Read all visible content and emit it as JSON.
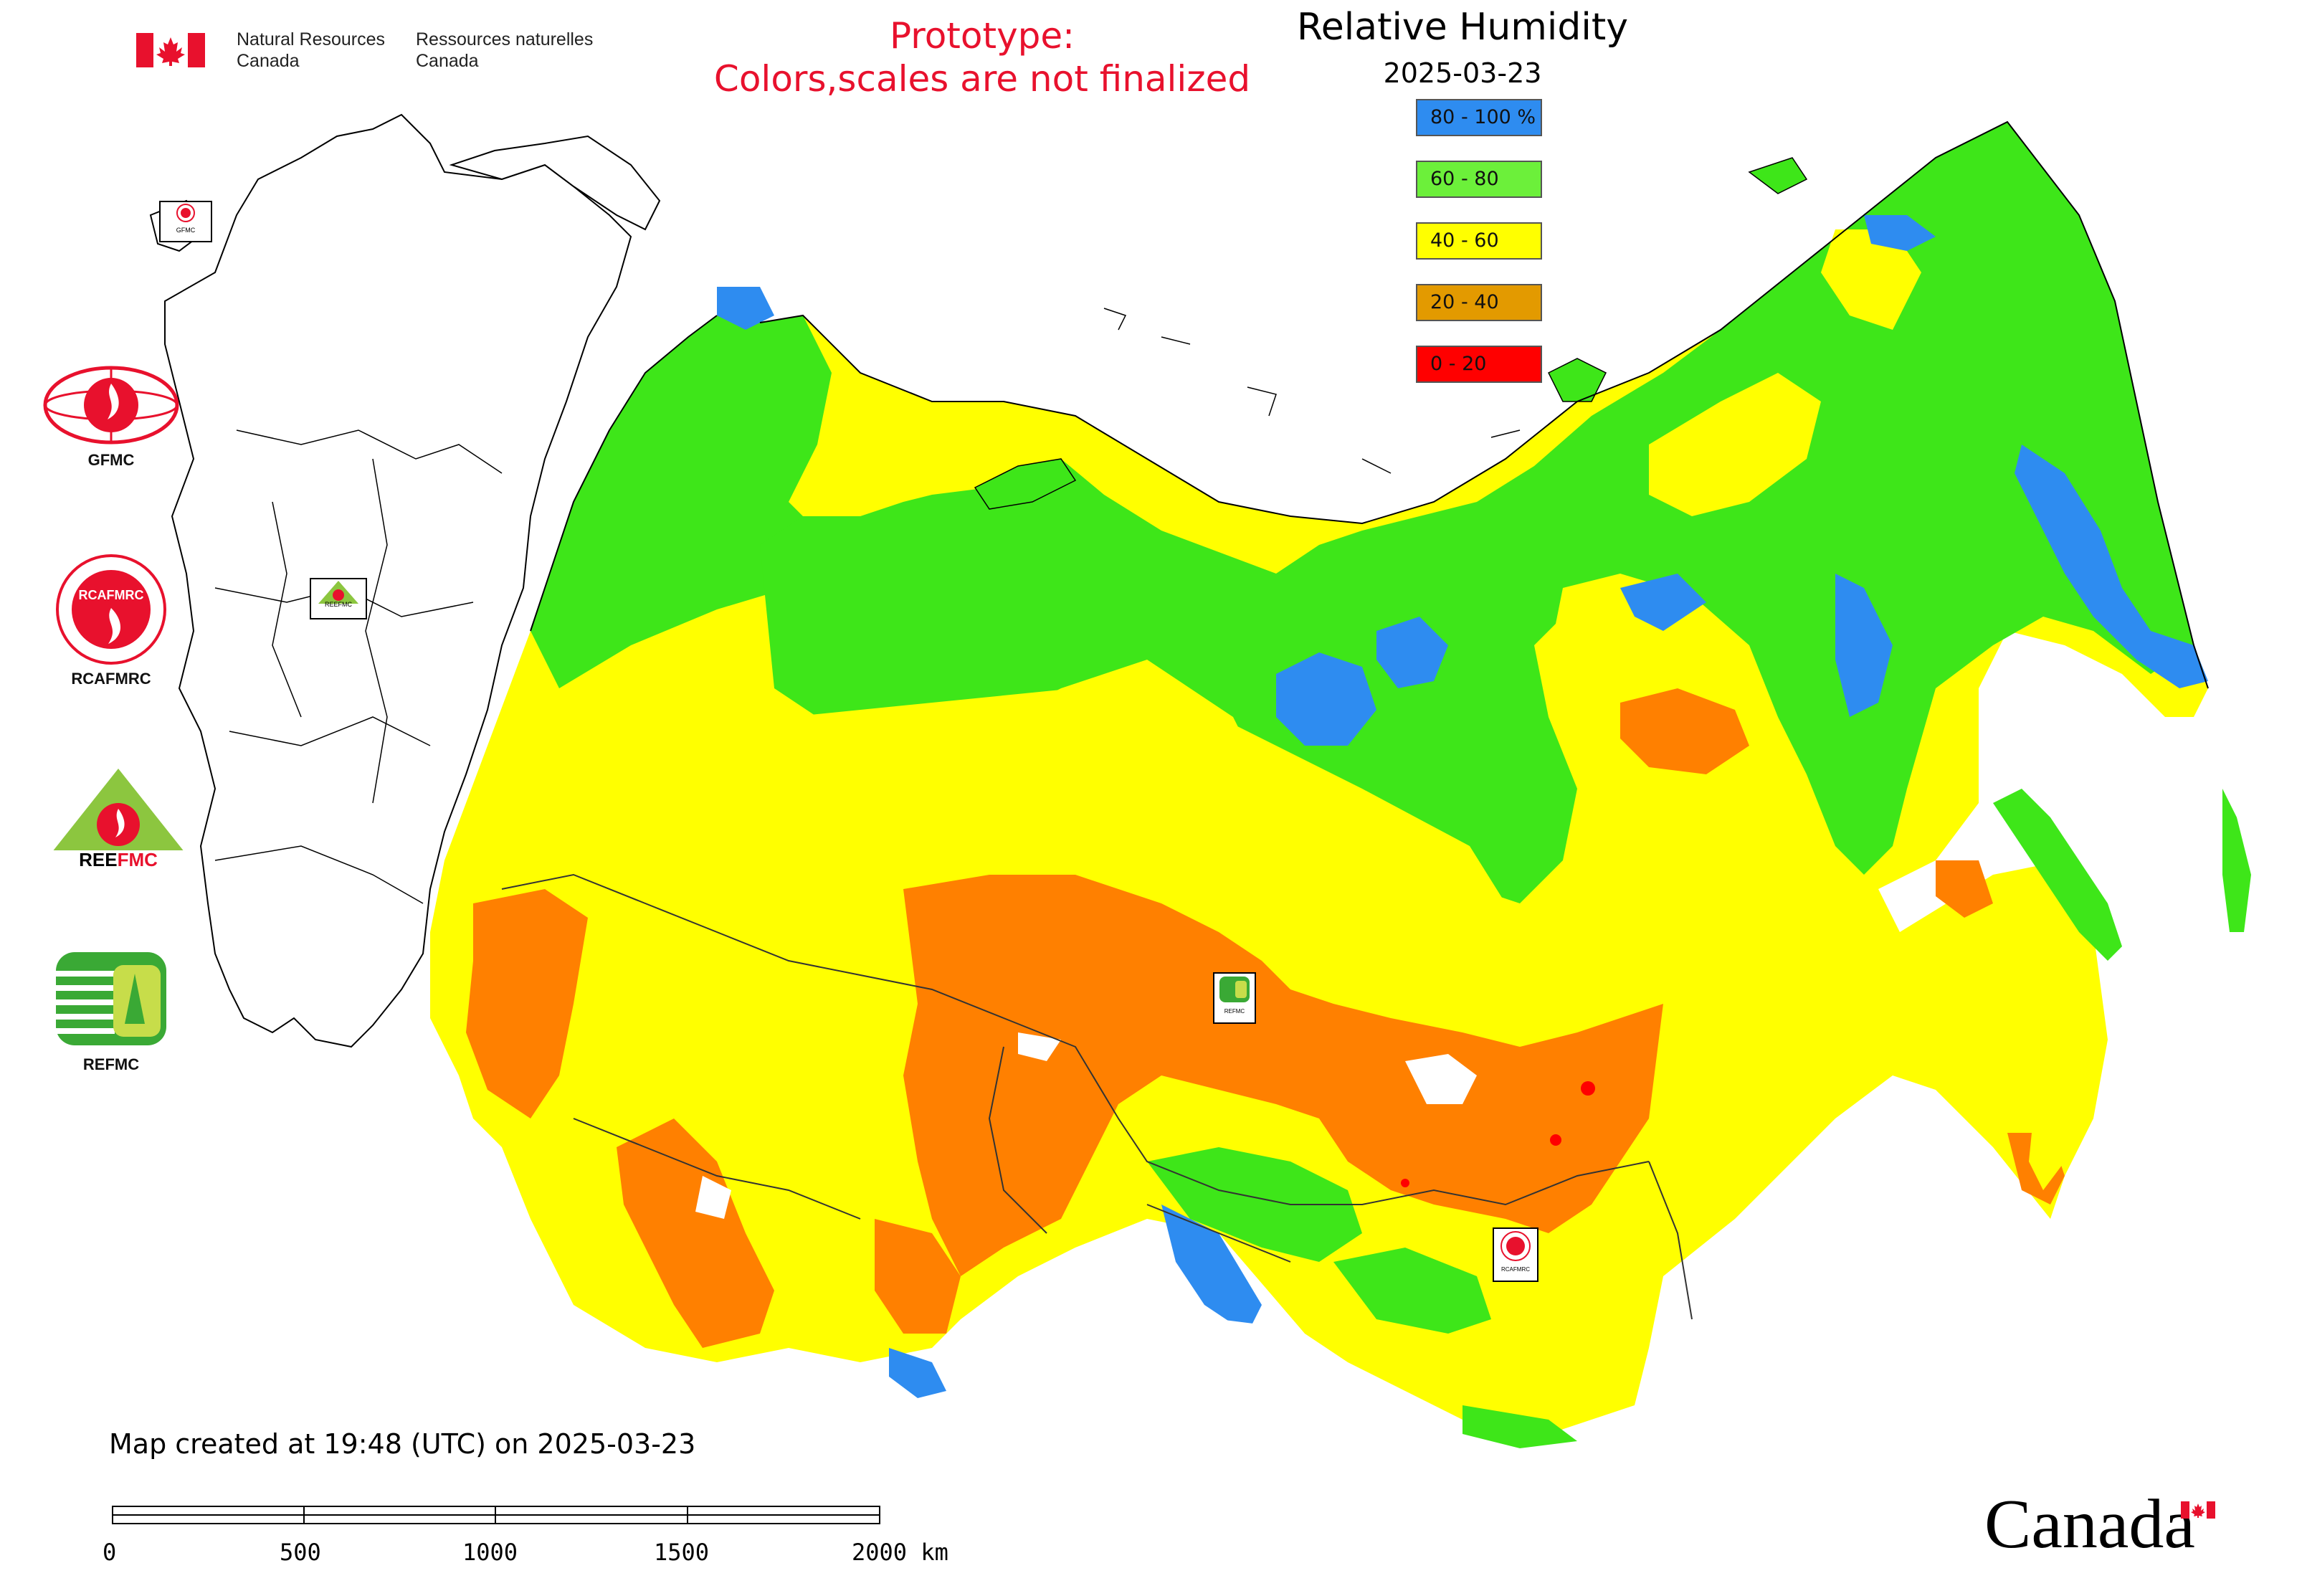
{
  "header": {
    "agency_en_line1": "Natural Resources",
    "agency_en_line2": "Canada",
    "agency_fr_line1": "Ressources naturelles",
    "agency_fr_line2": "Canada",
    "prototype_line1": "Prototype:",
    "prototype_line2": "Colors,scales are not finalized"
  },
  "title": {
    "main": "Relative Humidity",
    "date": "2025-03-23"
  },
  "legend": {
    "items": [
      {
        "label": "80 - 100 %",
        "color": "#2e8cf0"
      },
      {
        "label": "60 - 80",
        "color": "#6cf03a"
      },
      {
        "label": "40 - 60",
        "color": "#ffff00"
      },
      {
        "label": "20 - 40",
        "color": "#e39a00"
      },
      {
        "label": "0 - 20",
        "color": "#ff0000"
      }
    ]
  },
  "logos": {
    "gfmc": "GFMC",
    "rcafmrc": "RCAFMRC",
    "reefmc": "REEFMC",
    "refmc": "REFMC",
    "gfmc_small": "GFMC",
    "reefmc_small": "REEFMC",
    "refmc_small": "REFMC",
    "rcafmrc_small": "RCAFMRC"
  },
  "footer": {
    "created": "Map created at 19:48 (UTC) on 2025-03-23",
    "scale_ticks": [
      "0",
      "500",
      "1000",
      "1500",
      "2000 km"
    ],
    "wordmark": "Canada"
  },
  "colors": {
    "blue": "#2e8cf0",
    "green": "#3ee619",
    "yellow": "#ffff00",
    "orange": "#ff8000",
    "red": "#ff0000",
    "prototype": "#e8112d"
  }
}
